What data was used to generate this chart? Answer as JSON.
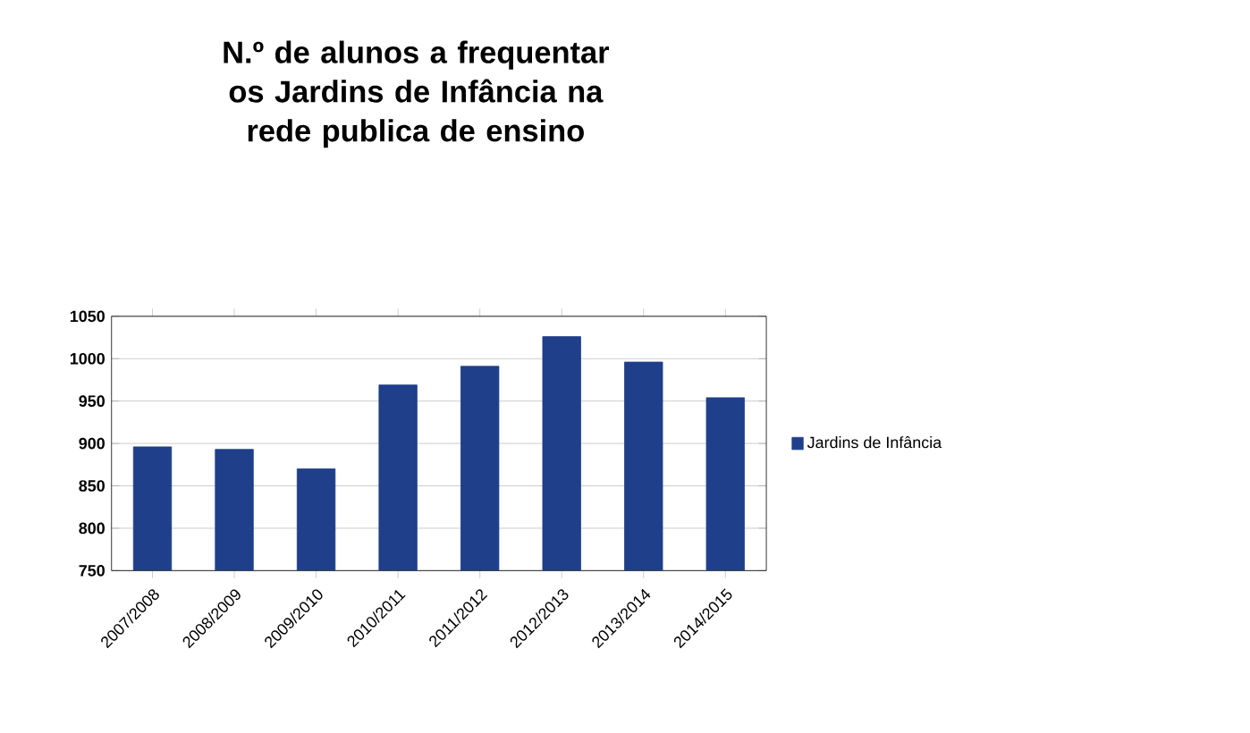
{
  "chart_data": {
    "type": "bar",
    "title": "N.º de alunos a frequentar os Jardins de Infância na rede publica de ensino",
    "categories": [
      "2007/2008",
      "2008/2009",
      "2009/2010",
      "2010/2011",
      "2011/2012",
      "2012/2013",
      "2013/2014",
      "2014/2015"
    ],
    "series": [
      {
        "name": "Jardins de Infância",
        "color": "#1f3f8a",
        "values": [
          896,
          893,
          870,
          969,
          991,
          1026,
          996,
          954
        ]
      }
    ],
    "ylim": [
      750,
      1050
    ],
    "yticks": [
      750,
      800,
      850,
      900,
      950,
      1000,
      1050
    ],
    "grid": "y",
    "legend": "right"
  }
}
